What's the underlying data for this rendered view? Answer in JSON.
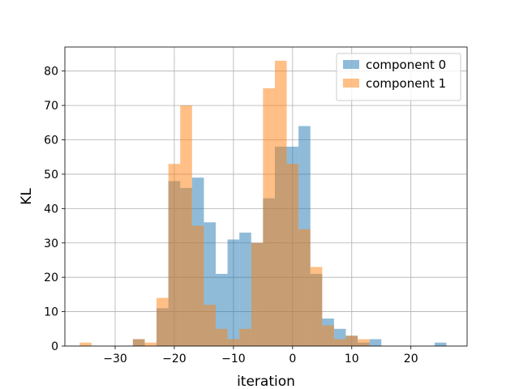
{
  "chart_data": {
    "type": "histogram",
    "xlabel": "iteration",
    "ylabel": "KL",
    "xlim": [
      -38.5,
      29.5
    ],
    "ylim": [
      0,
      87
    ],
    "x_ticks": [
      -30,
      -20,
      -10,
      0,
      10,
      20
    ],
    "y_ticks": [
      0,
      10,
      20,
      30,
      40,
      50,
      60,
      70,
      80
    ],
    "grid": true,
    "legend_position": "top-right",
    "bin_width": 2,
    "series": [
      {
        "name": "component 0",
        "color": "#1f77b4",
        "opacity": 0.5,
        "bins": [
          {
            "x0": -27,
            "x1": -25,
            "count": 2
          },
          {
            "x0": -23,
            "x1": -21,
            "count": 11
          },
          {
            "x0": -21,
            "x1": -19,
            "count": 48
          },
          {
            "x0": -19,
            "x1": -17,
            "count": 46
          },
          {
            "x0": -17,
            "x1": -15,
            "count": 49
          },
          {
            "x0": -15,
            "x1": -13,
            "count": 36
          },
          {
            "x0": -13,
            "x1": -11,
            "count": 21
          },
          {
            "x0": -11,
            "x1": -9,
            "count": 31
          },
          {
            "x0": -9,
            "x1": -7,
            "count": 33
          },
          {
            "x0": -7,
            "x1": -5,
            "count": 30
          },
          {
            "x0": -5,
            "x1": -3,
            "count": 43
          },
          {
            "x0": -3,
            "x1": -1,
            "count": 58
          },
          {
            "x0": -1,
            "x1": 1,
            "count": 58
          },
          {
            "x0": 1,
            "x1": 3,
            "count": 64
          },
          {
            "x0": 3,
            "x1": 5,
            "count": 21
          },
          {
            "x0": 5,
            "x1": 7,
            "count": 8
          },
          {
            "x0": 7,
            "x1": 9,
            "count": 5
          },
          {
            "x0": 9,
            "x1": 11,
            "count": 3
          },
          {
            "x0": 11,
            "x1": 13,
            "count": 1
          },
          {
            "x0": 13,
            "x1": 15,
            "count": 2
          },
          {
            "x0": 24,
            "x1": 26,
            "count": 1
          }
        ]
      },
      {
        "name": "component 1",
        "color": "#ff7f0e",
        "opacity": 0.5,
        "bins": [
          {
            "x0": -36,
            "x1": -34,
            "count": 1
          },
          {
            "x0": -27,
            "x1": -25,
            "count": 2
          },
          {
            "x0": -25,
            "x1": -23,
            "count": 1
          },
          {
            "x0": -23,
            "x1": -21,
            "count": 14
          },
          {
            "x0": -21,
            "x1": -19,
            "count": 53
          },
          {
            "x0": -19,
            "x1": -17,
            "count": 70
          },
          {
            "x0": -17,
            "x1": -15,
            "count": 35
          },
          {
            "x0": -15,
            "x1": -13,
            "count": 12
          },
          {
            "x0": -13,
            "x1": -11,
            "count": 5
          },
          {
            "x0": -11,
            "x1": -9,
            "count": 2
          },
          {
            "x0": -9,
            "x1": -7,
            "count": 5
          },
          {
            "x0": -7,
            "x1": -5,
            "count": 30
          },
          {
            "x0": -5,
            "x1": -3,
            "count": 75
          },
          {
            "x0": -3,
            "x1": -1,
            "count": 83
          },
          {
            "x0": -1,
            "x1": 1,
            "count": 53
          },
          {
            "x0": 1,
            "x1": 3,
            "count": 34
          },
          {
            "x0": 3,
            "x1": 5,
            "count": 23
          },
          {
            "x0": 5,
            "x1": 7,
            "count": 6
          },
          {
            "x0": 7,
            "x1": 9,
            "count": 2
          },
          {
            "x0": 9,
            "x1": 11,
            "count": 3
          },
          {
            "x0": 11,
            "x1": 13,
            "count": 2
          }
        ]
      }
    ]
  }
}
